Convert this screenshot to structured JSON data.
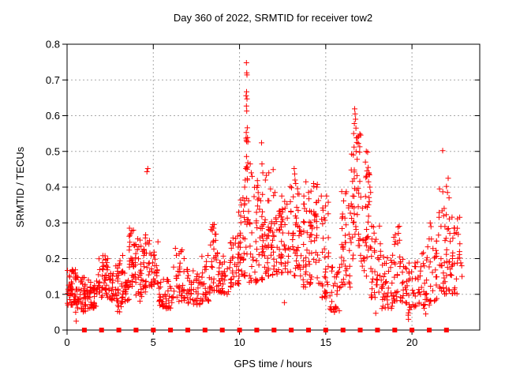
{
  "title": "Day 360 of 2022, SRMTID for receiver tow2",
  "chart_data": {
    "type": "scatter",
    "title": "Day 360 of 2022, SRMTID for receiver tow2",
    "xlabel": "GPS time / hours",
    "ylabel": "SRMTID / TECUs",
    "xlim": [
      0,
      23.93
    ],
    "ylim": [
      0,
      0.8
    ],
    "xtick_values": [
      0,
      5,
      10,
      15,
      20
    ],
    "xtick_labels": [
      "0",
      "5",
      "10",
      "15",
      "20"
    ],
    "ytick_values": [
      0,
      0.1,
      0.2,
      0.3,
      0.4,
      0.5,
      0.6,
      0.7,
      0.8
    ],
    "ytick_labels": [
      "0",
      "0.1",
      "0.2",
      "0.3",
      "0.4",
      "0.5",
      "0.6",
      "0.7",
      "0.8"
    ],
    "grid": true,
    "grid_color": "#a8a8a8",
    "marker": "plus",
    "marker_color": "#ff0000",
    "axis_color": "#000000",
    "seed": 7,
    "series": [
      {
        "name": "srmtid-points",
        "marker": "plus",
        "peaks": [
          [
            0.5,
            0.05
          ],
          [
            0.53,
            0.025
          ],
          [
            0.62,
            0.062
          ],
          [
            3.62,
            0.285
          ],
          [
            3.7,
            0.27
          ],
          [
            4.63,
            0.443
          ],
          [
            4.68,
            0.452
          ],
          [
            8.45,
            0.295
          ],
          [
            8.5,
            0.285
          ],
          [
            9.95,
            0.33
          ],
          [
            10.1,
            0.35
          ],
          [
            10.2,
            0.37
          ],
          [
            10.3,
            0.4
          ],
          [
            10.33,
            0.42
          ],
          [
            10.4,
            0.748
          ],
          [
            10.42,
            0.72
          ],
          [
            10.43,
            0.714
          ],
          [
            10.41,
            0.667
          ],
          [
            10.38,
            0.656
          ],
          [
            10.43,
            0.647
          ],
          [
            10.4,
            0.627
          ],
          [
            10.42,
            0.613
          ],
          [
            10.45,
            0.566
          ],
          [
            10.39,
            0.553
          ],
          [
            10.41,
            0.528
          ],
          [
            10.4,
            0.457
          ],
          [
            10.44,
            0.45
          ],
          [
            10.37,
            0.452
          ],
          [
            10.46,
            0.42
          ],
          [
            10.62,
            0.465
          ],
          [
            10.68,
            0.44
          ],
          [
            10.73,
            0.43
          ],
          [
            11.28,
            0.524
          ],
          [
            11.3,
            0.465
          ],
          [
            11.35,
            0.44
          ],
          [
            11.5,
            0.42
          ],
          [
            11.56,
            0.433
          ],
          [
            11.7,
            0.44
          ],
          [
            11.8,
            0.395
          ],
          [
            11.95,
            0.449
          ],
          [
            12.05,
            0.385
          ],
          [
            12.45,
            0.375
          ],
          [
            12.62,
            0.36
          ],
          [
            13.17,
            0.452
          ],
          [
            13.2,
            0.437
          ],
          [
            13.22,
            0.42
          ],
          [
            13.26,
            0.41
          ],
          [
            13.85,
            0.415
          ],
          [
            14.3,
            0.41
          ],
          [
            14.48,
            0.4
          ],
          [
            15.05,
            0.375
          ],
          [
            16.68,
            0.619
          ],
          [
            16.7,
            0.605
          ],
          [
            16.73,
            0.59
          ],
          [
            16.66,
            0.578
          ],
          [
            16.75,
            0.565
          ],
          [
            16.62,
            0.55
          ],
          [
            16.78,
            0.538
          ],
          [
            16.8,
            0.525
          ],
          [
            16.64,
            0.512
          ],
          [
            16.76,
            0.5
          ],
          [
            16.6,
            0.49
          ],
          [
            16.82,
            0.478
          ],
          [
            17.35,
            0.5
          ],
          [
            17.43,
            0.498
          ],
          [
            17.3,
            0.47
          ],
          [
            17.46,
            0.455
          ],
          [
            17.5,
            0.44
          ],
          [
            17.38,
            0.43
          ],
          [
            17.48,
            0.415
          ],
          [
            17.56,
            0.4
          ],
          [
            17.6,
            0.385
          ],
          [
            21.6,
            0.395
          ],
          [
            21.78,
            0.502
          ],
          [
            21.79,
            0.387
          ],
          [
            22.0,
            0.402
          ],
          [
            22.06,
            0.385
          ],
          [
            22.1,
            0.425
          ],
          [
            22.15,
            0.37
          ],
          [
            12.6,
            0.077
          ],
          [
            15.5,
            0.05
          ],
          [
            15.56,
            0.066
          ],
          [
            17.9,
            0.047
          ],
          [
            19.8,
            0.03
          ],
          [
            19.86,
            0.057
          ],
          [
            20.8,
            0.045
          ],
          [
            21.0,
            0.07
          ],
          [
            22.88,
            0.18
          ],
          [
            22.9,
            0.15
          ]
        ],
        "bands": [
          [
            0.0,
            0.55,
            0.07,
            0.17,
            55
          ],
          [
            0.55,
            1.1,
            0.05,
            0.15,
            50
          ],
          [
            1.1,
            1.8,
            0.06,
            0.14,
            45
          ],
          [
            1.8,
            2.4,
            0.09,
            0.21,
            45
          ],
          [
            2.4,
            3.0,
            0.08,
            0.18,
            40
          ],
          [
            2.9,
            3.3,
            0.05,
            0.21,
            28
          ],
          [
            3.3,
            3.6,
            0.08,
            0.16,
            22
          ],
          [
            3.55,
            3.9,
            0.12,
            0.29,
            28
          ],
          [
            3.9,
            4.35,
            0.08,
            0.26,
            32
          ],
          [
            4.35,
            4.85,
            0.1,
            0.27,
            30
          ],
          [
            4.85,
            5.3,
            0.12,
            0.26,
            28
          ],
          [
            5.3,
            6.1,
            0.06,
            0.15,
            45
          ],
          [
            6.1,
            6.9,
            0.08,
            0.23,
            40
          ],
          [
            6.9,
            7.8,
            0.07,
            0.17,
            45
          ],
          [
            7.8,
            8.3,
            0.08,
            0.21,
            30
          ],
          [
            8.3,
            8.75,
            0.11,
            0.3,
            30
          ],
          [
            8.75,
            9.4,
            0.1,
            0.21,
            35
          ],
          [
            9.4,
            10.0,
            0.12,
            0.28,
            40
          ],
          [
            10.0,
            10.35,
            0.15,
            0.37,
            28
          ],
          [
            10.35,
            10.55,
            0.2,
            0.55,
            16
          ],
          [
            10.55,
            11.1,
            0.13,
            0.42,
            35
          ],
          [
            11.1,
            11.6,
            0.14,
            0.43,
            35
          ],
          [
            11.6,
            12.2,
            0.15,
            0.38,
            45
          ],
          [
            12.2,
            12.9,
            0.16,
            0.37,
            45
          ],
          [
            12.9,
            13.5,
            0.15,
            0.42,
            40
          ],
          [
            13.5,
            14.1,
            0.12,
            0.4,
            40
          ],
          [
            14.1,
            14.7,
            0.13,
            0.41,
            40
          ],
          [
            14.7,
            15.2,
            0.09,
            0.38,
            35
          ],
          [
            15.2,
            15.9,
            0.05,
            0.18,
            30
          ],
          [
            15.9,
            16.45,
            0.12,
            0.4,
            40
          ],
          [
            16.45,
            17.1,
            0.18,
            0.55,
            45
          ],
          [
            17.1,
            17.6,
            0.15,
            0.46,
            32
          ],
          [
            17.6,
            18.2,
            0.09,
            0.3,
            35
          ],
          [
            18.2,
            18.9,
            0.06,
            0.22,
            40
          ],
          [
            18.9,
            19.4,
            0.08,
            0.3,
            30
          ],
          [
            19.4,
            20.1,
            0.04,
            0.2,
            35
          ],
          [
            20.1,
            20.8,
            0.06,
            0.22,
            35
          ],
          [
            20.8,
            21.5,
            0.08,
            0.3,
            35
          ],
          [
            21.5,
            22.1,
            0.1,
            0.35,
            35
          ],
          [
            22.1,
            22.85,
            0.1,
            0.32,
            42
          ]
        ]
      },
      {
        "name": "zero-hour-markers",
        "marker": "square",
        "value": 0,
        "hours": [
          1,
          2,
          3,
          4,
          5,
          6,
          7,
          8,
          9,
          10,
          11,
          12,
          13,
          14,
          15,
          16,
          17,
          18,
          19,
          20,
          21,
          22
        ]
      }
    ]
  }
}
